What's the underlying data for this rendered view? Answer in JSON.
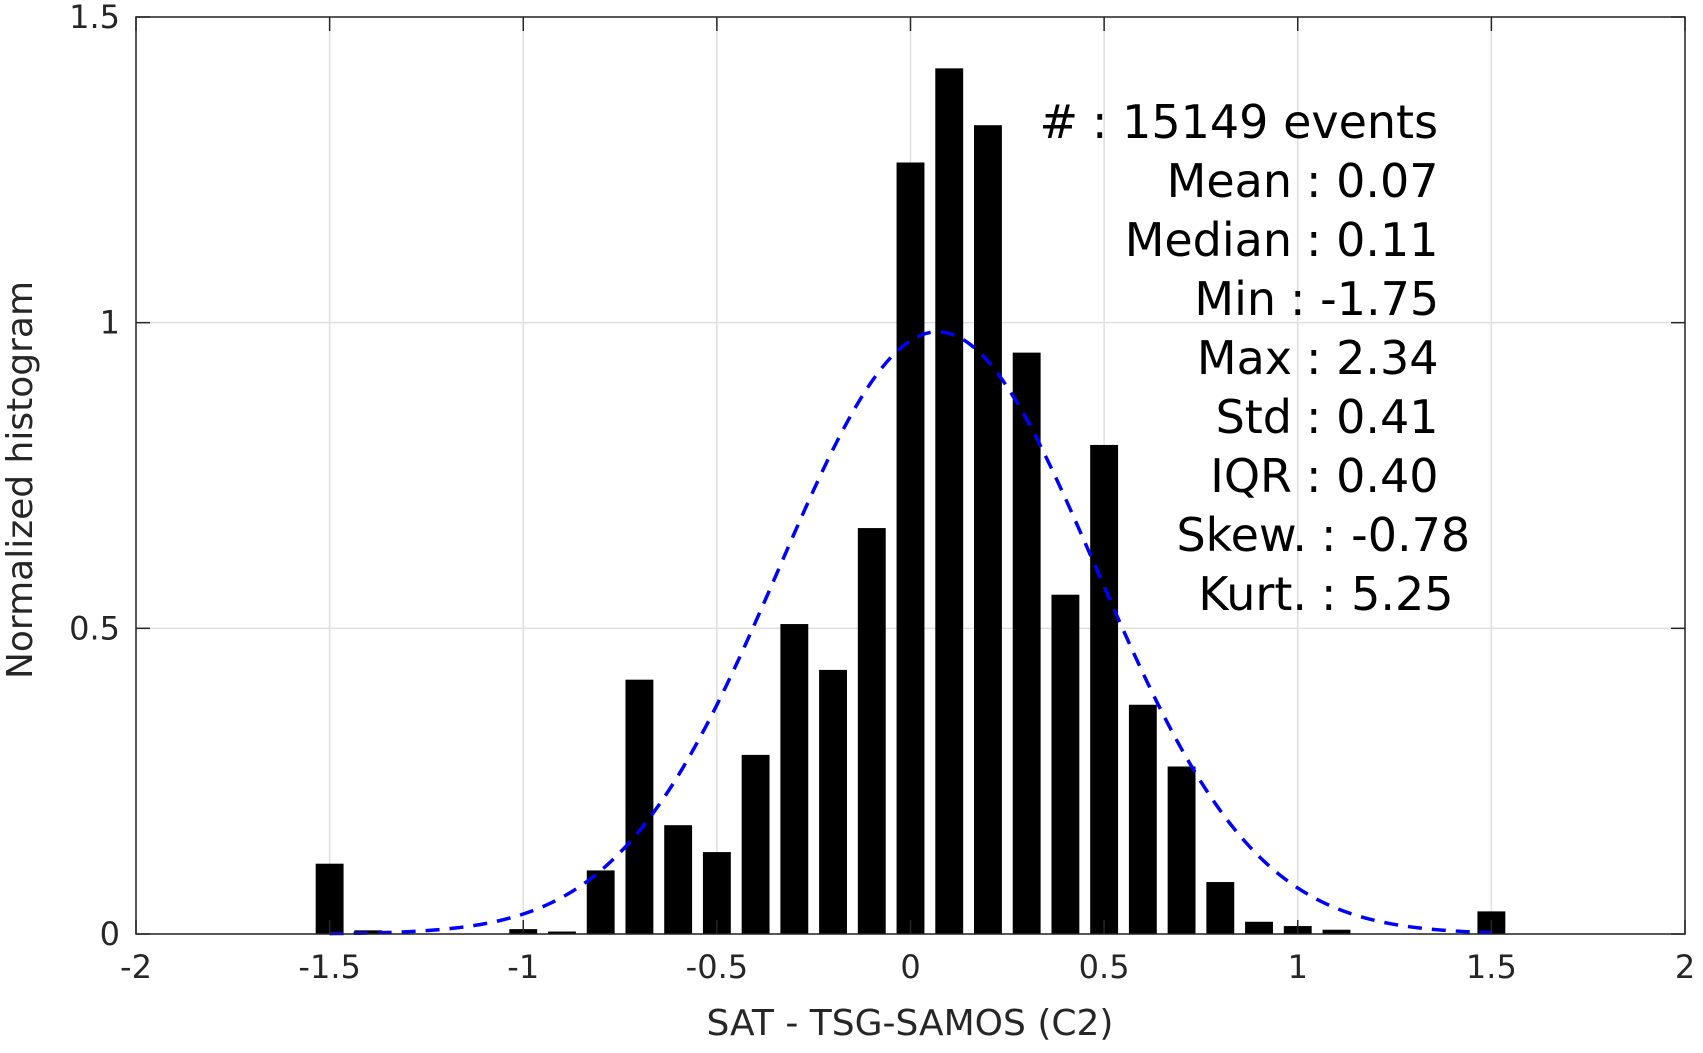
{
  "chart_data": {
    "type": "bar",
    "xlabel": "SAT - TSG-SAMOS (C2)",
    "ylabel": "Normalized histogram",
    "xlim": [
      -2,
      2
    ],
    "ylim": [
      0,
      1.5
    ],
    "xticks": [
      -2,
      -1.5,
      -1,
      -0.5,
      0,
      0.5,
      1,
      1.5,
      2
    ],
    "xtick_labels": [
      "-2",
      "-1.5",
      "-1",
      "-0.5",
      "0",
      "0.5",
      "1",
      "1.5",
      "2"
    ],
    "yticks": [
      0,
      0.5,
      1,
      1.5
    ],
    "ytick_labels": [
      "0",
      "0.5",
      "1",
      "1.5"
    ],
    "grid": true,
    "bar_color": "#000000",
    "bin_width": 0.1,
    "bins": [
      {
        "x": -1.5,
        "y": 0.115
      },
      {
        "x": -1.4,
        "y": 0.006
      },
      {
        "x": -1.0,
        "y": 0.008
      },
      {
        "x": -0.9,
        "y": 0.004
      },
      {
        "x": -0.8,
        "y": 0.104
      },
      {
        "x": -0.7,
        "y": 0.416
      },
      {
        "x": -0.6,
        "y": 0.178
      },
      {
        "x": -0.5,
        "y": 0.134
      },
      {
        "x": -0.4,
        "y": 0.293
      },
      {
        "x": -0.3,
        "y": 0.507
      },
      {
        "x": -0.2,
        "y": 0.432
      },
      {
        "x": -0.1,
        "y": 0.664
      },
      {
        "x": 0.0,
        "y": 1.262
      },
      {
        "x": 0.1,
        "y": 1.416
      },
      {
        "x": 0.2,
        "y": 1.323
      },
      {
        "x": 0.3,
        "y": 0.951
      },
      {
        "x": 0.4,
        "y": 0.555
      },
      {
        "x": 0.5,
        "y": 0.8
      },
      {
        "x": 0.6,
        "y": 0.375
      },
      {
        "x": 0.7,
        "y": 0.274
      },
      {
        "x": 0.8,
        "y": 0.085
      },
      {
        "x": 0.9,
        "y": 0.02
      },
      {
        "x": 1.0,
        "y": 0.013
      },
      {
        "x": 1.1,
        "y": 0.007
      },
      {
        "x": 1.5,
        "y": 0.037
      }
    ],
    "fit_curve": {
      "style": "dashed",
      "color": "#0000ff",
      "mean": 0.07,
      "std": 0.41,
      "peak": 0.985,
      "x_range": [
        -1.5,
        1.5
      ]
    },
    "stats": [
      {
        "label": "#",
        "value": ": 15149 events"
      },
      {
        "label": "Mean",
        "value": ": 0.07"
      },
      {
        "label": "Median",
        "value": ": 0.11"
      },
      {
        "label": "Min",
        "value": ": -1.75"
      },
      {
        "label": "Max",
        "value": ": 2.34"
      },
      {
        "label": "Std",
        "value": ": 0.41"
      },
      {
        "label": "IQR",
        "value": ": 0.40"
      },
      {
        "label": "Skew.",
        "value": ": -0.78"
      },
      {
        "label": "Kurt.",
        "value": ": 5.25"
      }
    ]
  }
}
